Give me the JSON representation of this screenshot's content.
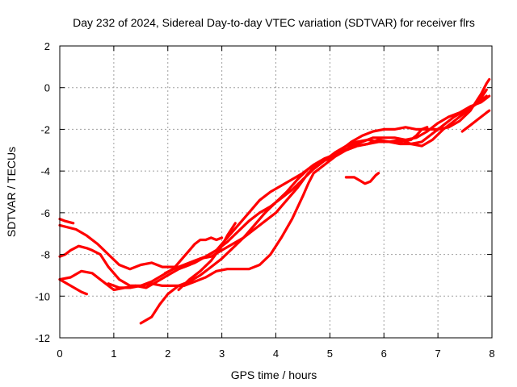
{
  "chart_data": {
    "type": "line",
    "title": "Day 232 of 2024, Sidereal Day-to-day VTEC variation (SDTVAR) for receiver flrs",
    "xlabel": "GPS time / hours",
    "ylabel": "SDTVAR / TECUs",
    "xlim": [
      0,
      8
    ],
    "ylim": [
      -12,
      2
    ],
    "xticks": [
      0,
      1,
      2,
      3,
      4,
      5,
      6,
      7,
      8
    ],
    "yticks": [
      -12,
      -10,
      -8,
      -6,
      -4,
      -2,
      0,
      2
    ],
    "grid": true,
    "color": "#ff0000",
    "series": [
      {
        "name": "s1",
        "points": [
          [
            0,
            -6.3
          ],
          [
            0.1,
            -6.4
          ],
          [
            0.25,
            -6.5
          ]
        ]
      },
      {
        "name": "s2",
        "points": [
          [
            0,
            -6.6
          ],
          [
            0.3,
            -6.8
          ],
          [
            0.5,
            -7.1
          ],
          [
            0.7,
            -7.5
          ],
          [
            0.9,
            -8.0
          ],
          [
            1.1,
            -8.5
          ],
          [
            1.3,
            -8.7
          ],
          [
            1.5,
            -8.5
          ],
          [
            1.7,
            -8.4
          ],
          [
            1.9,
            -8.6
          ],
          [
            2.1,
            -8.6
          ],
          [
            2.3,
            -8.6
          ],
          [
            2.5,
            -8.4
          ],
          [
            2.7,
            -8.1
          ],
          [
            2.9,
            -7.8
          ],
          [
            3.1,
            -7.4
          ],
          [
            3.3,
            -6.9
          ],
          [
            3.5,
            -6.4
          ],
          [
            3.7,
            -6.0
          ],
          [
            3.9,
            -5.7
          ],
          [
            4.1,
            -5.3
          ],
          [
            4.3,
            -4.9
          ],
          [
            4.5,
            -4.4
          ],
          [
            4.7,
            -3.9
          ],
          [
            4.9,
            -3.5
          ],
          [
            5.1,
            -3.1
          ],
          [
            5.3,
            -2.8
          ],
          [
            5.5,
            -2.6
          ],
          [
            5.7,
            -2.5
          ],
          [
            5.9,
            -2.6
          ],
          [
            6.1,
            -2.6
          ],
          [
            6.3,
            -2.5
          ],
          [
            6.5,
            -2.7
          ],
          [
            6.7,
            -2.6
          ],
          [
            6.9,
            -2.2
          ],
          [
            7.1,
            -1.8
          ],
          [
            7.3,
            -1.4
          ],
          [
            7.5,
            -1.1
          ],
          [
            7.7,
            -0.8
          ],
          [
            7.9,
            -0.4
          ]
        ]
      },
      {
        "name": "s3",
        "points": [
          [
            0,
            -8.1
          ],
          [
            0.1,
            -8.0
          ],
          [
            0.2,
            -7.8
          ],
          [
            0.35,
            -7.6
          ],
          [
            0.5,
            -7.7
          ],
          [
            0.6,
            -7.8
          ],
          [
            0.75,
            -8.0
          ],
          [
            0.9,
            -8.6
          ],
          [
            1.1,
            -9.2
          ],
          [
            1.3,
            -9.5
          ],
          [
            1.5,
            -9.5
          ],
          [
            1.7,
            -9.3
          ],
          [
            1.9,
            -9.0
          ],
          [
            2.1,
            -8.7
          ],
          [
            2.3,
            -8.5
          ],
          [
            2.5,
            -8.3
          ],
          [
            2.7,
            -8.1
          ],
          [
            2.9,
            -7.8
          ],
          [
            3.1,
            -7.2
          ],
          [
            3.3,
            -6.6
          ],
          [
            3.5,
            -6.0
          ],
          [
            3.7,
            -5.4
          ],
          [
            3.9,
            -5.0
          ],
          [
            4.1,
            -4.7
          ],
          [
            4.3,
            -4.4
          ],
          [
            4.5,
            -4.1
          ],
          [
            4.7,
            -3.7
          ],
          [
            4.9,
            -3.4
          ],
          [
            5.1,
            -3.2
          ],
          [
            5.3,
            -3.0
          ],
          [
            5.5,
            -2.8
          ],
          [
            5.7,
            -2.7
          ],
          [
            5.9,
            -2.5
          ],
          [
            6.1,
            -2.6
          ],
          [
            6.3,
            -2.7
          ],
          [
            6.5,
            -2.7
          ],
          [
            6.7,
            -2.8
          ],
          [
            6.9,
            -2.5
          ],
          [
            7.1,
            -2.0
          ],
          [
            7.3,
            -1.6
          ],
          [
            7.5,
            -1.2
          ],
          [
            7.7,
            -0.8
          ],
          [
            7.8,
            -0.5
          ],
          [
            7.9,
            -0.1
          ]
        ]
      },
      {
        "name": "s4",
        "points": [
          [
            0,
            -9.2
          ],
          [
            0.2,
            -9.1
          ],
          [
            0.4,
            -8.8
          ],
          [
            0.6,
            -8.9
          ],
          [
            0.8,
            -9.3
          ],
          [
            1.0,
            -9.7
          ],
          [
            1.2,
            -9.6
          ],
          [
            1.4,
            -9.5
          ],
          [
            1.6,
            -9.6
          ],
          [
            1.8,
            -9.3
          ],
          [
            2.0,
            -9.0
          ],
          [
            2.2,
            -8.7
          ],
          [
            2.4,
            -8.5
          ],
          [
            2.6,
            -8.2
          ],
          [
            2.8,
            -8.1
          ],
          [
            3.0,
            -7.8
          ],
          [
            3.2,
            -7.5
          ],
          [
            3.4,
            -7.2
          ],
          [
            3.6,
            -6.8
          ],
          [
            3.8,
            -6.4
          ],
          [
            4.0,
            -6.0
          ],
          [
            4.2,
            -5.4
          ],
          [
            4.4,
            -4.8
          ],
          [
            4.6,
            -4.1
          ],
          [
            4.8,
            -3.6
          ],
          [
            5.0,
            -3.3
          ],
          [
            5.2,
            -3.0
          ],
          [
            5.4,
            -2.6
          ],
          [
            5.6,
            -2.3
          ],
          [
            5.8,
            -2.1
          ],
          [
            6.0,
            -2.0
          ],
          [
            6.2,
            -2.0
          ],
          [
            6.4,
            -1.9
          ],
          [
            6.6,
            -2.0
          ],
          [
            6.8,
            -2.0
          ],
          [
            7.0,
            -2.0
          ],
          [
            7.2,
            -1.9
          ],
          [
            7.4,
            -1.6
          ],
          [
            7.6,
            -1.1
          ],
          [
            7.7,
            -0.7
          ],
          [
            7.8,
            -0.3
          ],
          [
            7.9,
            0.2
          ],
          [
            7.95,
            0.4
          ]
        ]
      },
      {
        "name": "s5",
        "points": [
          [
            0,
            -9.2
          ],
          [
            0.2,
            -9.5
          ],
          [
            0.4,
            -9.8
          ],
          [
            0.5,
            -9.9
          ]
        ]
      },
      {
        "name": "s6",
        "points": [
          [
            0.9,
            -9.4
          ],
          [
            1.1,
            -9.6
          ],
          [
            1.3,
            -9.6
          ],
          [
            1.5,
            -9.5
          ],
          [
            1.7,
            -9.4
          ],
          [
            1.9,
            -9.5
          ],
          [
            2.1,
            -9.5
          ],
          [
            2.3,
            -9.5
          ],
          [
            2.5,
            -9.3
          ],
          [
            2.7,
            -9.1
          ],
          [
            2.9,
            -8.8
          ],
          [
            3.1,
            -8.7
          ],
          [
            3.3,
            -8.7
          ],
          [
            3.5,
            -8.7
          ],
          [
            3.7,
            -8.5
          ],
          [
            3.9,
            -8.0
          ],
          [
            4.1,
            -7.2
          ],
          [
            4.3,
            -6.3
          ],
          [
            4.5,
            -5.2
          ],
          [
            4.6,
            -4.6
          ],
          [
            4.7,
            -4.1
          ],
          [
            4.9,
            -3.7
          ],
          [
            5.1,
            -3.3
          ],
          [
            5.3,
            -3.0
          ],
          [
            5.5,
            -2.8
          ],
          [
            5.7,
            -2.7
          ],
          [
            5.9,
            -2.6
          ],
          [
            6.1,
            -2.6
          ],
          [
            6.3,
            -2.6
          ],
          [
            6.5,
            -2.5
          ],
          [
            6.6,
            -2.3
          ],
          [
            6.7,
            -2.0
          ],
          [
            6.8,
            -1.9
          ]
        ]
      },
      {
        "name": "s7",
        "points": [
          [
            1.5,
            -11.3
          ],
          [
            1.7,
            -11.0
          ],
          [
            1.85,
            -10.4
          ],
          [
            2.0,
            -9.9
          ],
          [
            2.2,
            -9.5
          ],
          [
            2.4,
            -9.3
          ],
          [
            2.6,
            -9.0
          ],
          [
            2.8,
            -8.6
          ],
          [
            3.0,
            -8.2
          ],
          [
            3.2,
            -7.7
          ],
          [
            3.4,
            -7.2
          ],
          [
            3.6,
            -6.6
          ],
          [
            3.8,
            -6.0
          ],
          [
            4.0,
            -5.5
          ],
          [
            4.2,
            -5.0
          ],
          [
            4.4,
            -4.4
          ],
          [
            4.6,
            -3.9
          ],
          [
            4.8,
            -3.6
          ],
          [
            5.0,
            -3.4
          ],
          [
            5.2,
            -3.1
          ],
          [
            5.4,
            -2.8
          ],
          [
            5.6,
            -2.6
          ],
          [
            5.8,
            -2.4
          ],
          [
            6.0,
            -2.4
          ],
          [
            6.2,
            -2.4
          ],
          [
            6.4,
            -2.5
          ],
          [
            6.6,
            -2.4
          ],
          [
            6.8,
            -2.1
          ],
          [
            7.0,
            -1.7
          ],
          [
            7.2,
            -1.4
          ],
          [
            7.4,
            -1.2
          ],
          [
            7.6,
            -0.9
          ],
          [
            7.8,
            -0.7
          ],
          [
            7.95,
            -0.4
          ]
        ]
      },
      {
        "name": "s8",
        "points": [
          [
            2.2,
            -9.7
          ],
          [
            2.4,
            -9.2
          ],
          [
            2.6,
            -8.8
          ],
          [
            2.8,
            -8.3
          ],
          [
            3.0,
            -7.6
          ],
          [
            3.1,
            -7.1
          ],
          [
            3.2,
            -6.7
          ],
          [
            3.25,
            -6.5
          ]
        ]
      },
      {
        "name": "s9",
        "points": [
          [
            1.95,
            -8.9
          ],
          [
            2.1,
            -8.7
          ],
          [
            2.2,
            -8.4
          ],
          [
            2.3,
            -8.1
          ],
          [
            2.4,
            -7.8
          ],
          [
            2.5,
            -7.5
          ],
          [
            2.6,
            -7.3
          ],
          [
            2.7,
            -7.3
          ],
          [
            2.8,
            -7.2
          ],
          [
            2.9,
            -7.3
          ],
          [
            3.0,
            -7.2
          ]
        ]
      },
      {
        "name": "s10",
        "points": [
          [
            5.3,
            -4.3
          ],
          [
            5.45,
            -4.3
          ],
          [
            5.55,
            -4.45
          ],
          [
            5.65,
            -4.6
          ],
          [
            5.75,
            -4.5
          ],
          [
            5.85,
            -4.2
          ],
          [
            5.9,
            -4.1
          ]
        ]
      },
      {
        "name": "s11",
        "points": [
          [
            7.45,
            -2.1
          ],
          [
            7.6,
            -1.8
          ],
          [
            7.75,
            -1.5
          ],
          [
            7.9,
            -1.2
          ],
          [
            7.95,
            -1.1
          ]
        ]
      }
    ]
  }
}
